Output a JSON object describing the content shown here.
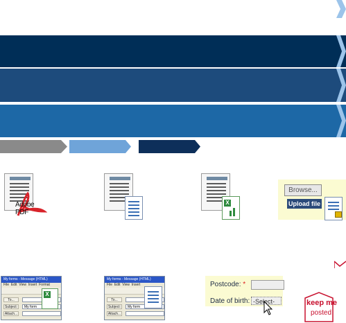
{
  "colors": {
    "bar_white": "#ffffff",
    "bar_navy": "#002e57",
    "bar_mid": "#1d4b7c",
    "bar_light": "#1d68a6",
    "step_grey": "#8a8a8a",
    "step_blue": "#6fa4d9",
    "step_dark": "#0d2f5a",
    "chevron_light": "#9cc4ea"
  },
  "steps": [
    "grey",
    "blue",
    "dark"
  ],
  "tiles": {
    "pdf": {
      "logo_text": "Adobe PDF",
      "icon": "pdf-document-icon"
    },
    "word": {
      "icon": "word-document-icon"
    },
    "excel": {
      "icon": "excel-document-icon"
    },
    "upload": {
      "browse_label": "Browse...",
      "upload_label": "Upload file",
      "icon": "lock-document-icon"
    }
  },
  "email_windows": [
    {
      "title": "My forms - Message (HTML)",
      "menu": [
        "File",
        "Edit",
        "View",
        "Insert",
        "Format"
      ],
      "to_label": "To...",
      "to_value": "",
      "subject_label": "Subject:",
      "subject_value": "My form",
      "attach_label": "Attach...",
      "icon": "excel-document-icon"
    },
    {
      "title": "My forms - Message (HTML)",
      "menu": [
        "File",
        "Edit",
        "View",
        "Insert"
      ],
      "to_label": "To...",
      "to_value": "",
      "subject_label": "Subject:",
      "subject_value": "My form",
      "attach_label": "Attach...",
      "icon": "word-document-icon"
    }
  ],
  "form": {
    "postcode_label": "Postcode:",
    "dob_label": "Date of birth:",
    "required_mark": "*",
    "select_value": "-Select-"
  },
  "keep_me": {
    "line1": "keep me",
    "line2": "posted"
  }
}
